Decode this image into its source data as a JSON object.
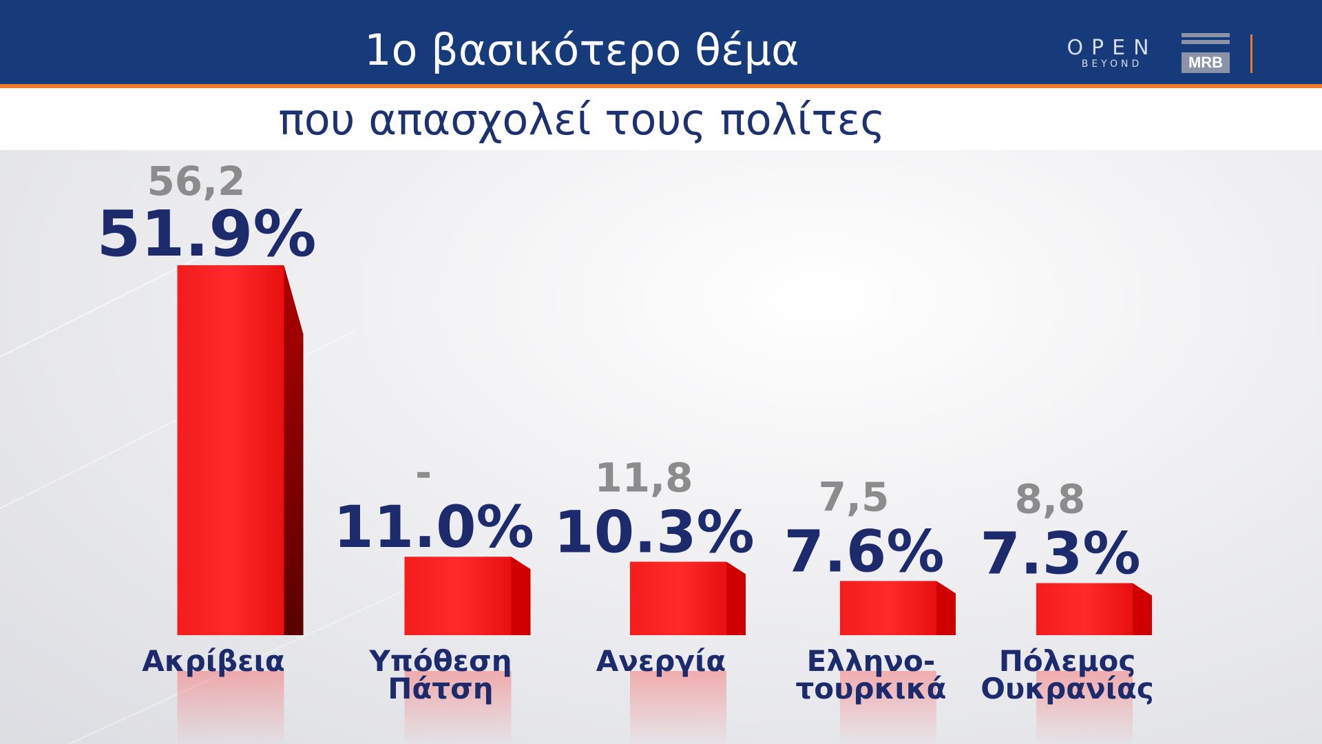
{
  "header": {
    "title": "1ο βασικότερο θέμα",
    "subtitle": "που απασχολεί τους πολίτες",
    "logo_open": "OPEN",
    "logo_open_sub": "BEYOND",
    "logo_mrb": "MRB"
  },
  "colors": {
    "header_bg": "#173a7a",
    "accent_orange": "#f07a2a",
    "bar_red": "#ee1c1c",
    "value_navy": "#1d2a6b",
    "previous_gray": "#8c8c8c"
  },
  "chart_data": {
    "type": "bar",
    "categories": [
      "Ακρίβεια",
      "Υπόθεση Πάτση",
      "Ανεργία",
      "Ελληνο- τουρκικά",
      "Πόλεμος Ουκρανίας"
    ],
    "category_lines": [
      [
        "Ακρίβεια"
      ],
      [
        "Υπόθεση",
        "Πάτση"
      ],
      [
        "Ανεργία"
      ],
      [
        "Ελληνο-",
        "τουρκικά"
      ],
      [
        "Πόλεμος",
        "Ουκρανίας"
      ]
    ],
    "values": [
      51.9,
      11.0,
      10.3,
      7.6,
      7.3
    ],
    "value_labels": [
      "51.9%",
      "11.0%",
      "10.3%",
      "7.6%",
      "7.3%"
    ],
    "previous_labels": [
      "56,2",
      "-",
      "11,8",
      "7,5",
      "8,8"
    ],
    "unit": "%",
    "grid": false
  }
}
